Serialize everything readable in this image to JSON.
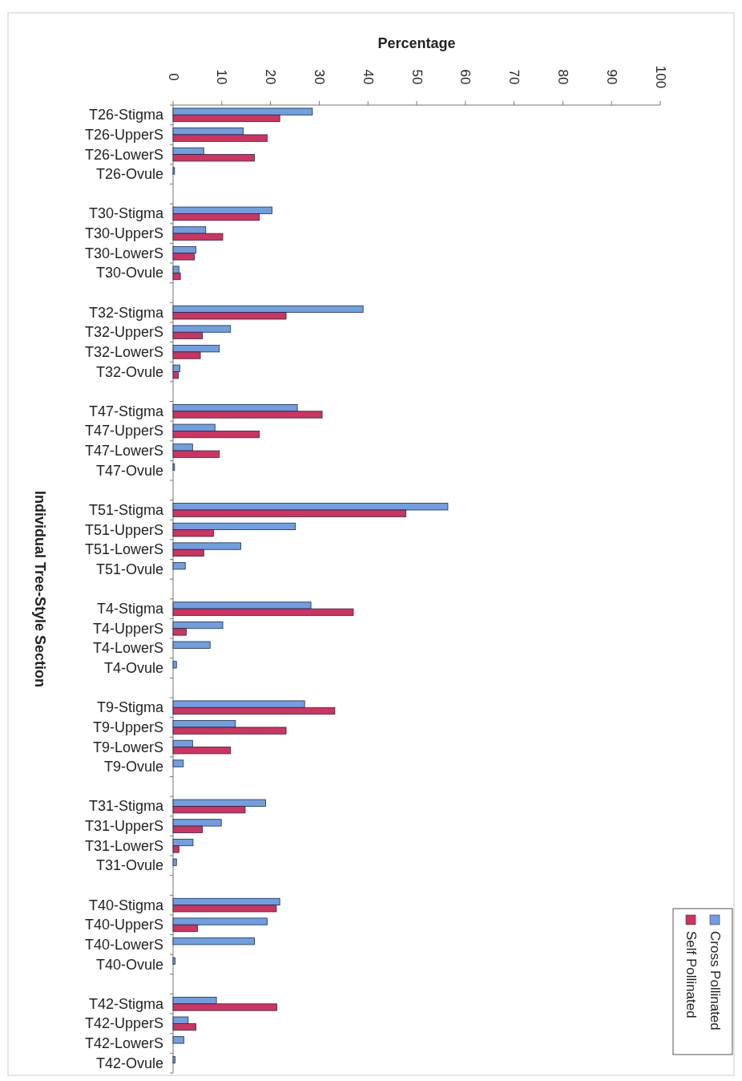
{
  "chart_data": {
    "type": "bar",
    "orientation": "horizontal",
    "xlabel": "Percentage",
    "ylabel": "Individual Tree-Style Section",
    "categories": [
      "T26-Stigma",
      "T26-UpperS",
      "T26-LowerS",
      "T26-Ovule",
      null,
      "T30-Stigma",
      "T30-UpperS",
      "T30-LowerS",
      "T30-Ovule",
      null,
      "T32-Stigma",
      "T32-UpperS",
      "T32-LowerS",
      "T32-Ovule",
      null,
      "T47-Stigma",
      "T47-UpperS",
      "T47-LowerS",
      "T47-Ovule",
      null,
      "T51-Stigma",
      "T51-UpperS",
      "T51-LowerS",
      "T51-Ovule",
      null,
      "T4-Stigma",
      "T4-UpperS",
      "T4-LowerS",
      "T4-Ovule",
      null,
      "T9-Stigma",
      "T9-UpperS",
      "T9-LowerS",
      "T9-Ovule",
      null,
      "T31-Stigma",
      "T31-UpperS",
      "T31-LowerS",
      "T31-Ovule",
      null,
      "T40-Stigma",
      "T40-UpperS",
      "T40-LowerS",
      "T40-Ovule",
      null,
      "T42-Stigma",
      "T42-UpperS",
      "T42-LowerS",
      "T42-Ovule"
    ],
    "series": [
      {
        "name": "Cross Pollinated",
        "color": "#6f9fe0",
        "values": [
          28.6,
          14.4,
          6.3,
          0.3,
          null,
          20.3,
          6.7,
          4.7,
          1.2,
          null,
          39.0,
          11.8,
          9.5,
          1.4,
          null,
          25.5,
          8.6,
          4.0,
          0.3,
          null,
          56.4,
          25.1,
          13.9,
          2.5,
          null,
          28.3,
          10.2,
          7.6,
          0.7,
          null,
          27.0,
          12.8,
          4.0,
          2.1,
          null,
          19.0,
          9.9,
          4.1,
          0.7,
          null,
          21.9,
          19.3,
          16.7,
          0.4,
          null,
          8.9,
          3.1,
          2.2,
          0.4
        ]
      },
      {
        "name": "Self Pollinated",
        "color": "#d0335f",
        "values": [
          21.9,
          19.3,
          16.7,
          0,
          null,
          17.7,
          10.2,
          4.4,
          1.5,
          null,
          23.2,
          6.0,
          5.6,
          1.1,
          null,
          30.6,
          17.7,
          9.5,
          0,
          null,
          47.8,
          8.3,
          6.3,
          0,
          null,
          37.0,
          2.7,
          0,
          0,
          null,
          33.2,
          23.2,
          11.8,
          0,
          null,
          14.8,
          6.0,
          1.2,
          0,
          null,
          21.2,
          5.0,
          0,
          0,
          null,
          21.3,
          4.7,
          0,
          0
        ]
      }
    ],
    "xlim": [
      0,
      100
    ],
    "xticks": [
      0,
      10,
      20,
      30,
      40,
      50,
      60,
      70,
      80,
      90,
      100
    ],
    "legend": "bottom right",
    "grid": false
  }
}
